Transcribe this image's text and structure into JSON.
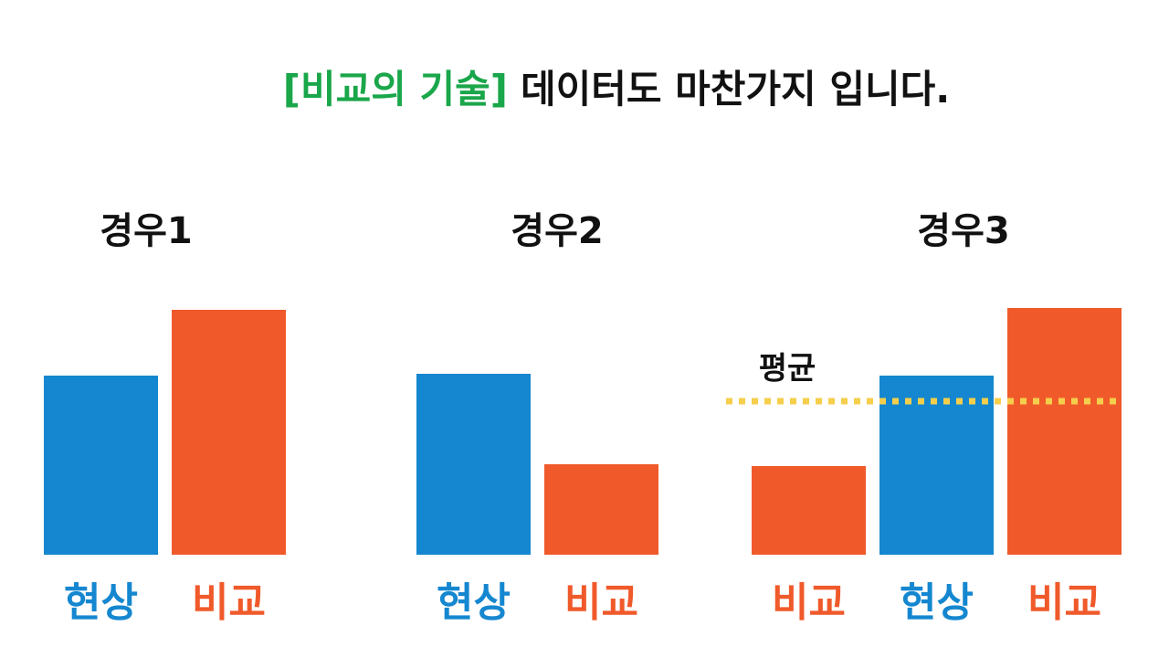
{
  "header": {
    "highlight": "[비교의 기술]",
    "text": "데이터도 마찬가지 입니다.",
    "highlight_color": "#1aa64a"
  },
  "chart_data": [
    {
      "type": "bar",
      "title": "경우1",
      "categories": [
        "현상",
        "비교"
      ],
      "values": [
        196,
        268
      ],
      "colors": [
        "#1587d0",
        "#f05a2b"
      ],
      "ylim": [
        0,
        300
      ]
    },
    {
      "type": "bar",
      "title": "경우2",
      "categories": [
        "현상",
        "비교"
      ],
      "values": [
        198,
        99
      ],
      "colors": [
        "#1587d0",
        "#f05a2b"
      ],
      "ylim": [
        0,
        300
      ]
    },
    {
      "type": "bar",
      "title": "경우3",
      "categories": [
        "비교",
        "현상",
        "비교"
      ],
      "values": [
        97,
        196,
        270
      ],
      "colors": [
        "#f05a2b",
        "#1587d0",
        "#f05a2b"
      ],
      "ylim": [
        0,
        300
      ],
      "reference_line": {
        "label": "평균",
        "value": 168,
        "color": "#f5cf4c"
      }
    }
  ]
}
